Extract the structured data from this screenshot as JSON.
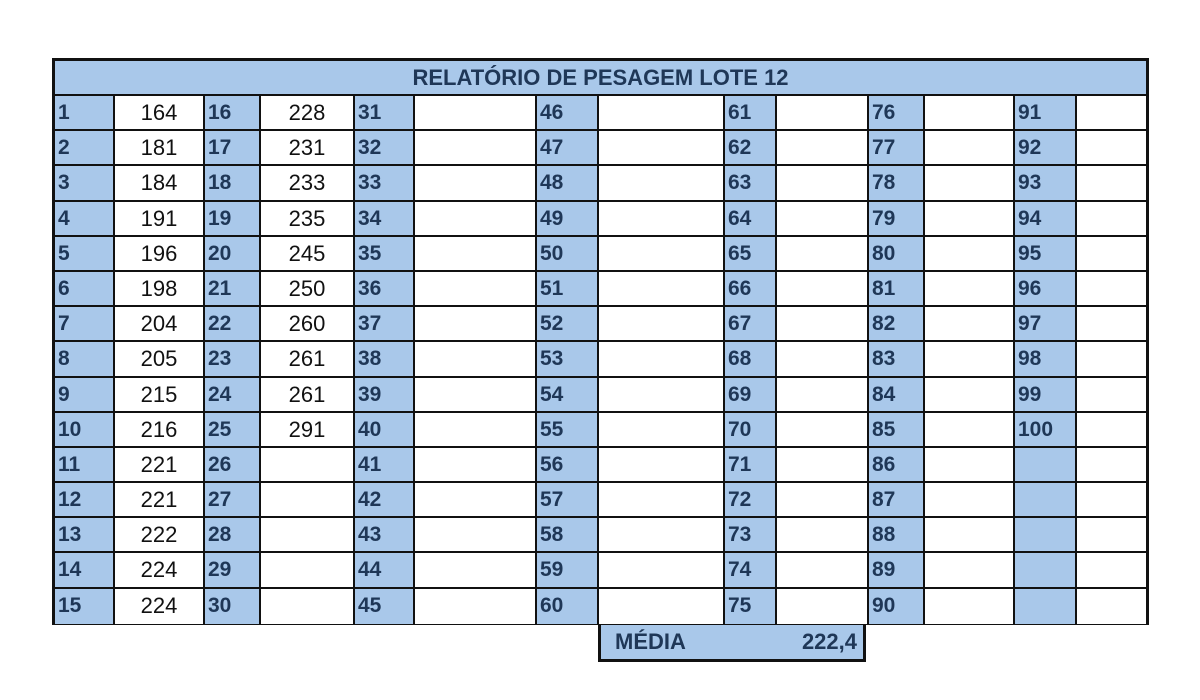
{
  "title": "RELATÓRIO DE PESAGEM LOTE 12",
  "labels": [
    "1",
    "2",
    "3",
    "4",
    "5",
    "6",
    "7",
    "8",
    "9",
    "10",
    "11",
    "12",
    "13",
    "14",
    "15",
    "16",
    "17",
    "18",
    "19",
    "20",
    "21",
    "22",
    "23",
    "24",
    "25",
    "26",
    "27",
    "28",
    "29",
    "30",
    "31",
    "32",
    "33",
    "34",
    "35",
    "36",
    "37",
    "38",
    "39",
    "40",
    "41",
    "42",
    "43",
    "44",
    "45",
    "46",
    "47",
    "48",
    "49",
    "50",
    "51",
    "52",
    "53",
    "54",
    "55",
    "56",
    "57",
    "58",
    "59",
    "60",
    "61",
    "62",
    "63",
    "64",
    "65",
    "66",
    "67",
    "68",
    "69",
    "70",
    "71",
    "72",
    "73",
    "74",
    "75",
    "76",
    "77",
    "78",
    "79",
    "80",
    "81",
    "82",
    "83",
    "84",
    "85",
    "86",
    "87",
    "88",
    "89",
    "90",
    "91",
    "92",
    "93",
    "94",
    "95",
    "96",
    "97",
    "98",
    "99",
    "100",
    "",
    "",
    "",
    "",
    ""
  ],
  "weights": [
    "164",
    "181",
    "184",
    "191",
    "196",
    "198",
    "204",
    "205",
    "215",
    "216",
    "221",
    "221",
    "222",
    "224",
    "224",
    "228",
    "231",
    "233",
    "235",
    "245",
    "250",
    "260",
    "261",
    "261",
    "291",
    "",
    "",
    "",
    "",
    "",
    "",
    "",
    "",
    "",
    "",
    "",
    "",
    "",
    "",
    "",
    "",
    "",
    "",
    "",
    "",
    "",
    "",
    "",
    "",
    "",
    "",
    "",
    "",
    "",
    "",
    "",
    "",
    "",
    "",
    "",
    "",
    "",
    "",
    "",
    "",
    "",
    "",
    "",
    "",
    "",
    "",
    "",
    "",
    "",
    "",
    "",
    "",
    "",
    "",
    "",
    "",
    "",
    "",
    "",
    "",
    "",
    "",
    "",
    "",
    "",
    "",
    "",
    "",
    "",
    "",
    "",
    "",
    "",
    "",
    "",
    "",
    "",
    "",
    "",
    ""
  ],
  "summary": {
    "label": "MÉDIA",
    "value": "222,4"
  }
}
